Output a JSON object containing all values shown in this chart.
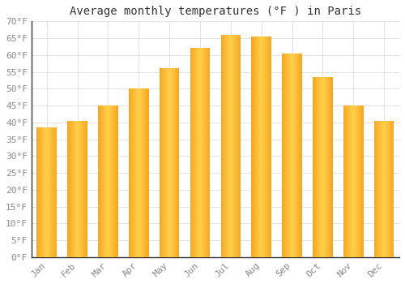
{
  "title": "Average monthly temperatures (°F ) in Paris",
  "months": [
    "Jan",
    "Feb",
    "Mar",
    "Apr",
    "May",
    "Jun",
    "Jul",
    "Aug",
    "Sep",
    "Oct",
    "Nov",
    "Dec"
  ],
  "values": [
    38.5,
    40.5,
    45.0,
    50.0,
    56.0,
    62.0,
    66.0,
    65.5,
    60.5,
    53.5,
    45.0,
    40.5
  ],
  "bar_color_left": "#F5A623",
  "bar_color_center": "#FFD04A",
  "bar_color_right": "#F5A623",
  "ylim": [
    0,
    70
  ],
  "ytick_step": 5,
  "background_color": "#FFFFFF",
  "grid_color": "#DDDDDD",
  "title_fontsize": 10,
  "tick_fontsize": 8,
  "tick_color": "#888888",
  "font_family": "monospace",
  "bar_width": 0.65,
  "n_gradient_steps": 50
}
